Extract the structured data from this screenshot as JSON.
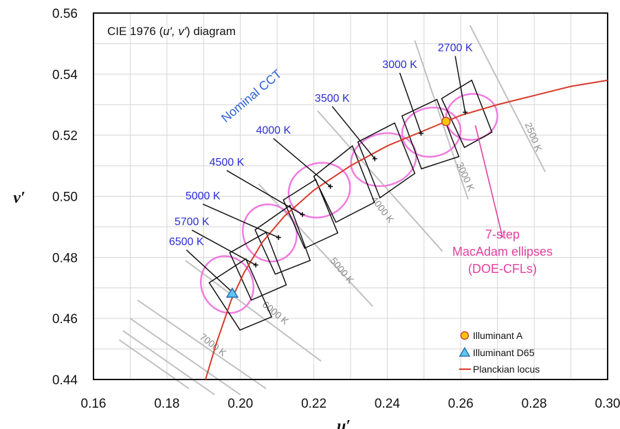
{
  "chart_data": {
    "type": "scatter",
    "title_prefix": "CIE 1976 (",
    "title_vars": "u′, v′",
    "title_suffix": ") diagram",
    "xlabel": "u′",
    "ylabel": "v′",
    "xlim": [
      0.16,
      0.3
    ],
    "ylim": [
      0.44,
      0.56
    ],
    "x_ticks": [
      "0.16",
      "0.18",
      "0.20",
      "0.22",
      "0.24",
      "0.26",
      "0.28",
      "0.30"
    ],
    "y_ticks": [
      "0.44",
      "0.46",
      "0.48",
      "0.50",
      "0.52",
      "0.54",
      "0.56"
    ],
    "grid": true,
    "planckian_locus": [
      [
        0.1905,
        0.44
      ],
      [
        0.1935,
        0.452
      ],
      [
        0.1975,
        0.466
      ],
      [
        0.201,
        0.475
      ],
      [
        0.206,
        0.485
      ],
      [
        0.212,
        0.4935
      ],
      [
        0.22,
        0.502
      ],
      [
        0.23,
        0.51
      ],
      [
        0.24,
        0.5165
      ],
      [
        0.25,
        0.5215
      ],
      [
        0.26,
        0.5265
      ],
      [
        0.27,
        0.53
      ],
      [
        0.28,
        0.533
      ],
      [
        0.29,
        0.536
      ],
      [
        0.3,
        0.538
      ]
    ],
    "cct_points": [
      {
        "label": "6500 K",
        "u": 0.1979,
        "v": 0.4685,
        "label_pos": [
          0.1853,
          0.484
        ]
      },
      {
        "label": "5700 K",
        "u": 0.2042,
        "v": 0.4775,
        "label_pos": [
          0.1868,
          0.4905
        ]
      },
      {
        "label": "5000 K",
        "u": 0.2104,
        "v": 0.4865,
        "label_pos": [
          0.1898,
          0.499
        ]
      },
      {
        "label": "4500 K",
        "u": 0.2169,
        "v": 0.494,
        "label_pos": [
          0.1963,
          0.51
        ]
      },
      {
        "label": "4000 K",
        "u": 0.2245,
        "v": 0.5032,
        "label_pos": [
          0.209,
          0.5205
        ]
      },
      {
        "label": "3500 K",
        "u": 0.2366,
        "v": 0.5123,
        "label_pos": [
          0.225,
          0.531
        ]
      },
      {
        "label": "3000 K",
        "u": 0.2492,
        "v": 0.5206,
        "label_pos": [
          0.2434,
          0.542
        ]
      },
      {
        "label": "2700 K",
        "u": 0.2612,
        "v": 0.5275,
        "label_pos": [
          0.2585,
          0.5475
        ]
      }
    ],
    "isotherms": [
      {
        "label": "2500 K",
        "from": [
          0.2625,
          0.556
        ],
        "to": [
          0.283,
          0.508
        ],
        "label_pos": [
          0.279,
          0.519
        ],
        "rot": 68
      },
      {
        "label": "3000 K",
        "from": [
          0.2475,
          0.551
        ],
        "to": [
          0.262,
          0.499
        ],
        "label_pos": [
          0.2605,
          0.506
        ],
        "rot": 66
      },
      {
        "label": "4000 K",
        "from": [
          0.221,
          0.528
        ],
        "to": [
          0.255,
          0.482
        ],
        "label_pos": [
          0.238,
          0.495
        ],
        "rot": 52
      },
      {
        "label": "5000 K",
        "from": [
          0.205,
          0.504
        ],
        "to": [
          0.236,
          0.464
        ],
        "label_pos": [
          0.227,
          0.475
        ],
        "rot": 50
      },
      {
        "label": "6000 K",
        "from": [
          0.185,
          0.479
        ],
        "to": [
          0.222,
          0.446
        ],
        "label_pos": [
          0.209,
          0.461
        ],
        "rot": 40
      },
      {
        "label": "7000 K",
        "from": [
          0.172,
          0.466
        ],
        "to": [
          0.207,
          0.437
        ],
        "label_pos": [
          0.192,
          0.4505
        ],
        "rot": 38
      }
    ],
    "extra_isotherm_lines": [
      [
        [
          0.17,
          0.46
        ],
        [
          0.2,
          0.435
        ]
      ],
      [
        [
          0.168,
          0.456
        ],
        [
          0.193,
          0.435
        ]
      ],
      [
        [
          0.167,
          0.453
        ],
        [
          0.186,
          0.437
        ]
      ]
    ],
    "quadrangles": [
      [
        [
          0.1915,
          0.4717
        ],
        [
          0.2015,
          0.4795
        ],
        [
          0.2085,
          0.4605
        ],
        [
          0.1999,
          0.4562
        ]
      ],
      [
        [
          0.1971,
          0.4815
        ],
        [
          0.207,
          0.4882
        ],
        [
          0.2125,
          0.471
        ],
        [
          0.203,
          0.466
        ]
      ],
      [
        [
          0.204,
          0.489
        ],
        [
          0.2135,
          0.497
        ],
        [
          0.219,
          0.479
        ],
        [
          0.2095,
          0.4745
        ]
      ],
      [
        [
          0.2117,
          0.4988
        ],
        [
          0.2205,
          0.5055
        ],
        [
          0.2265,
          0.488
        ],
        [
          0.2175,
          0.483
        ]
      ],
      [
        [
          0.22,
          0.5065
        ],
        [
          0.2305,
          0.5165
        ],
        [
          0.2365,
          0.498
        ],
        [
          0.226,
          0.4915
        ]
      ],
      [
        [
          0.232,
          0.5178
        ],
        [
          0.242,
          0.524
        ],
        [
          0.2475,
          0.5075
        ],
        [
          0.238,
          0.4995
        ]
      ],
      [
        [
          0.244,
          0.5263
        ],
        [
          0.2535,
          0.5317
        ],
        [
          0.2595,
          0.513
        ],
        [
          0.2493,
          0.509
        ]
      ],
      [
        [
          0.2548,
          0.532
        ],
        [
          0.263,
          0.538
        ],
        [
          0.2685,
          0.521
        ],
        [
          0.261,
          0.516
        ]
      ]
    ],
    "ellipses": [
      {
        "u": 0.1964,
        "v": 0.4711,
        "rx": 0.007,
        "ry": 0.0095,
        "rot": -25
      },
      {
        "u": 0.208,
        "v": 0.488,
        "rx": 0.0072,
        "ry": 0.0095,
        "rot": -25
      },
      {
        "u": 0.2215,
        "v": 0.502,
        "rx": 0.0085,
        "ry": 0.0088,
        "rot": -20
      },
      {
        "u": 0.239,
        "v": 0.512,
        "rx": 0.009,
        "ry": 0.0085,
        "rot": -15
      },
      {
        "u": 0.252,
        "v": 0.521,
        "rx": 0.008,
        "ry": 0.008,
        "rot": -10
      },
      {
        "u": 0.263,
        "v": 0.526,
        "rx": 0.007,
        "ry": 0.0075,
        "rot": -10
      }
    ],
    "illuminant_a": {
      "u": 0.256,
      "v": 0.5245
    },
    "illuminant_d65": {
      "u": 0.1978,
      "v": 0.4683
    },
    "nominal_label": "Nominal CCT",
    "nominal_pos": [
      0.196,
      0.524
    ],
    "macadam_note": [
      "7-step",
      "MacAdam ellipses",
      "(DOE-CFLs)"
    ],
    "macadam_pointer": {
      "from": [
        0.264,
        0.5232
      ],
      "to": [
        0.2714,
        0.4865
      ]
    },
    "legend": [
      {
        "label": "Illuminant A",
        "marker": "circle"
      },
      {
        "label": "Illuminant D65",
        "marker": "triangle"
      },
      {
        "label": "Planckian locus",
        "marker": "line"
      }
    ],
    "legend_placement": "bottom-right"
  },
  "colors": {
    "locus": "#d83a2a",
    "quad": "#111111",
    "ellipse": "#f07be0",
    "isotherm": "#c0c0c0",
    "grid": "#d4d4d4",
    "cct_label": "#2b2bd6",
    "nominal": "#2c63d4",
    "mac_note": "#e0409e",
    "illuminant_a_fill": "#f6c70a",
    "illuminant_a_stroke": "#d8422f",
    "d65_fill": "#5ec6f2",
    "d65_stroke": "#2a6fb0"
  }
}
